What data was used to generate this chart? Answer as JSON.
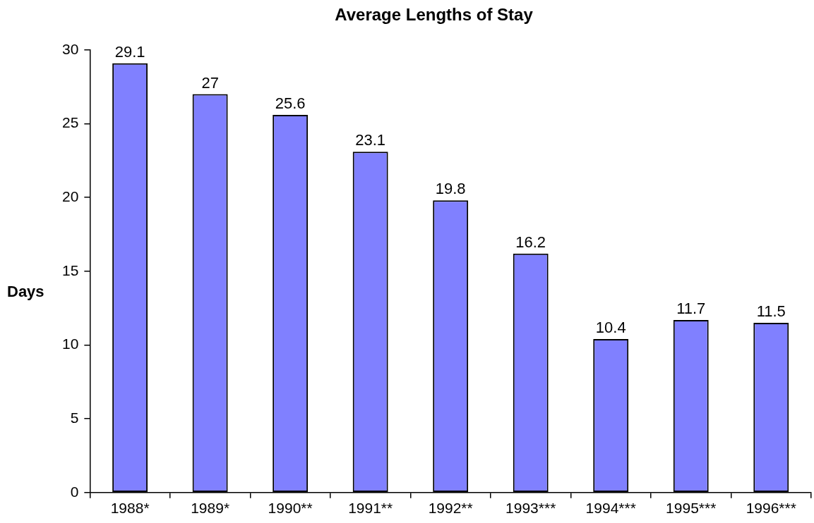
{
  "chart_data": {
    "type": "bar",
    "title": "Average Lengths of Stay",
    "ylabel": "Days",
    "categories": [
      "1988*",
      "1989*",
      "1990**",
      "1991**",
      "1992**",
      "1993***",
      "1994***",
      "1995***",
      "1996***"
    ],
    "values": [
      29.1,
      27,
      25.6,
      23.1,
      19.8,
      16.2,
      10.4,
      11.7,
      11.5
    ],
    "color": "#8080ff",
    "ylim": [
      0,
      30
    ],
    "yticks": [
      0,
      5,
      10,
      15,
      20,
      25,
      30
    ],
    "grid": false,
    "legend": false,
    "data_labels": true
  }
}
